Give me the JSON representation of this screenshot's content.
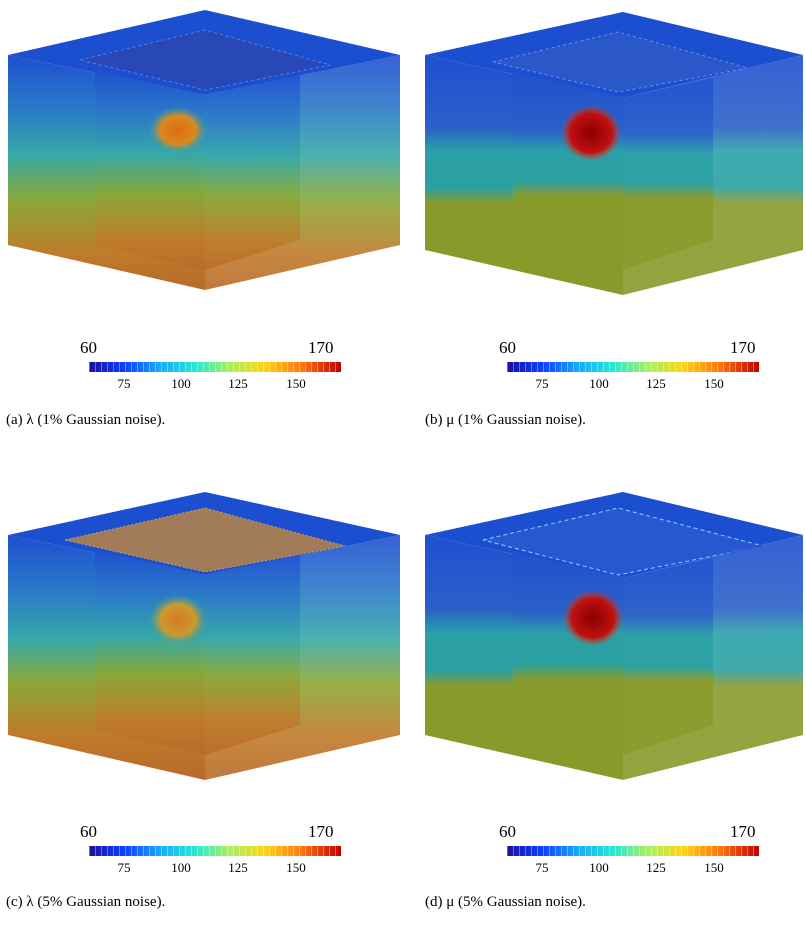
{
  "panels": [
    {
      "caption": "(a) λ (1% Gaussian noise).",
      "cb_min": "60",
      "cb_max": "170",
      "ticks": [
        "75",
        "100",
        "125",
        "150"
      ],
      "colormap": "jet",
      "variable": "lambda",
      "noise": "1%"
    },
    {
      "caption": "(b) μ (1% Gaussian noise).",
      "cb_min": "60",
      "cb_max": "170",
      "ticks": [
        "75",
        "100",
        "125",
        "150"
      ],
      "colormap": "jet",
      "variable": "mu",
      "noise": "1%"
    },
    {
      "caption": "(c) λ (5% Gaussian noise).",
      "cb_min": "60",
      "cb_max": "170",
      "ticks": [
        "75",
        "100",
        "125",
        "150"
      ],
      "colormap": "jet",
      "variable": "lambda",
      "noise": "5%"
    },
    {
      "caption": "(d) μ (5% Gaussian noise).",
      "cb_min": "60",
      "cb_max": "170",
      "ticks": [
        "75",
        "100",
        "125",
        "150"
      ],
      "colormap": "jet",
      "variable": "mu",
      "noise": "5%"
    }
  ],
  "colors": {
    "top_blue": "#1f57d6",
    "upper_blue": "#2a6fd0",
    "cyan_layer": "#2aa0a8",
    "green_layer": "#6aa83a",
    "olive_layer": "#8a9a2a",
    "inclusion_lambda": "#d07820",
    "inclusion_mu": "#b01010"
  }
}
